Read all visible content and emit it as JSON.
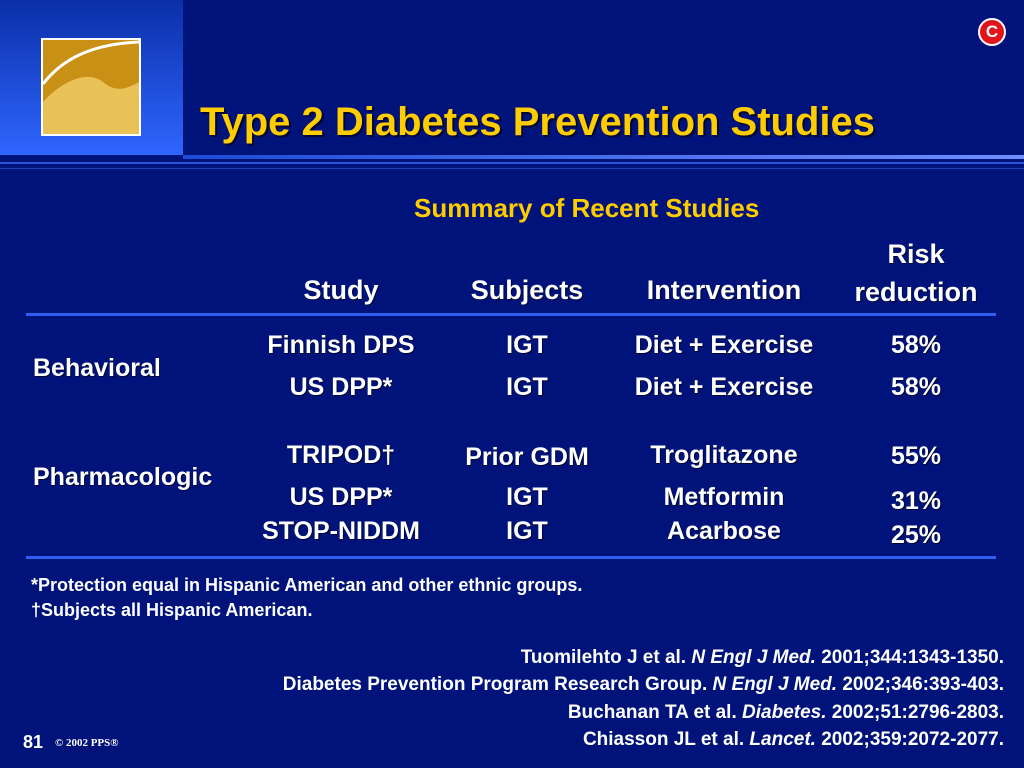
{
  "badge": "C",
  "title": "Type 2 Diabetes Prevention Studies",
  "subtitle": "Summary of Recent Studies",
  "columns": {
    "study": "Study",
    "subjects": "Subjects",
    "intervention": "Intervention",
    "risk_line1": "Risk",
    "risk_line2": "reduction"
  },
  "groups": {
    "behavioral": "Behavioral",
    "pharmacologic": "Pharmacologic"
  },
  "rows": [
    {
      "study": "Finnish DPS",
      "subjects": "IGT",
      "intervention": "Diet + Exercise",
      "risk": "58%"
    },
    {
      "study": "US DPP*",
      "subjects": "IGT",
      "intervention": "Diet + Exercise",
      "risk": "58%"
    },
    {
      "study": "TRIPOD†",
      "subjects": "Prior GDM",
      "intervention": "Troglitazone",
      "risk": "55%"
    },
    {
      "study": "US DPP*",
      "subjects": "IGT",
      "intervention": "Metformin",
      "risk": "31%"
    },
    {
      "study": "STOP-NIDDM",
      "subjects": "IGT",
      "intervention": "Acarbose",
      "risk": "25%"
    }
  ],
  "footnotes": [
    "*Protection equal in Hispanic American and other ethnic groups.",
    "†Subjects all Hispanic American."
  ],
  "references": [
    {
      "pre": "Tuomilehto J et al. ",
      "journal": "N Engl J Med.",
      "post": " 2001;344:1343-1350."
    },
    {
      "pre": "Diabetes Prevention Program Research Group. ",
      "journal": "N Engl J Med.",
      "post": " 2002;346:393-403."
    },
    {
      "pre": "Buchanan TA et al. ",
      "journal": "Diabetes.",
      "post": " 2002;51:2796-2803."
    },
    {
      "pre": "Chiasson JL et al. ",
      "journal": "Lancet.",
      "post": " 2002;359:2072-2077."
    }
  ],
  "page_number": "81",
  "copyright": "© 2002 PPS®",
  "colors": {
    "background": "#00137a",
    "title": "#ffcc00",
    "rule": "#2d5ef0",
    "logo_gold": "#c99016",
    "badge_red": "#e3131b"
  }
}
